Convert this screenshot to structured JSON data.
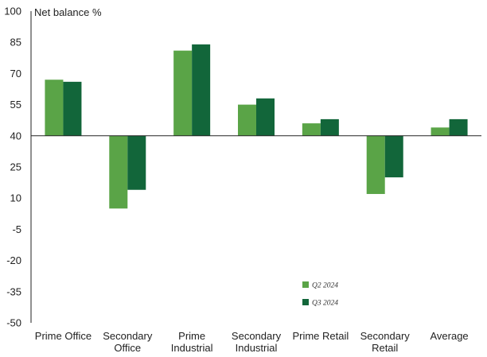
{
  "chart_data": {
    "type": "bar",
    "ylabel": "Net balance %",
    "ylim": [
      -50,
      100
    ],
    "yticks": [
      100,
      85,
      70,
      55,
      40,
      25,
      10,
      -5,
      -20,
      -35,
      -50
    ],
    "baseline": 40,
    "categories": [
      [
        "Prime Office"
      ],
      [
        "Secondary",
        "Office"
      ],
      [
        "Prime",
        "Industrial"
      ],
      [
        "Secondary",
        "Industrial"
      ],
      [
        "Prime Retail"
      ],
      [
        "Secondary",
        "Retail"
      ],
      [
        "Average"
      ]
    ],
    "series": [
      {
        "name": "Q2 2024",
        "color": "#5aa447",
        "values": [
          67,
          5,
          81,
          55,
          46,
          12,
          44
        ]
      },
      {
        "name": "Q3 2024",
        "color": "#12663a",
        "values": [
          66,
          14,
          84,
          58,
          48,
          20,
          48
        ]
      }
    ],
    "legend_position": "bottom-right-inside"
  }
}
